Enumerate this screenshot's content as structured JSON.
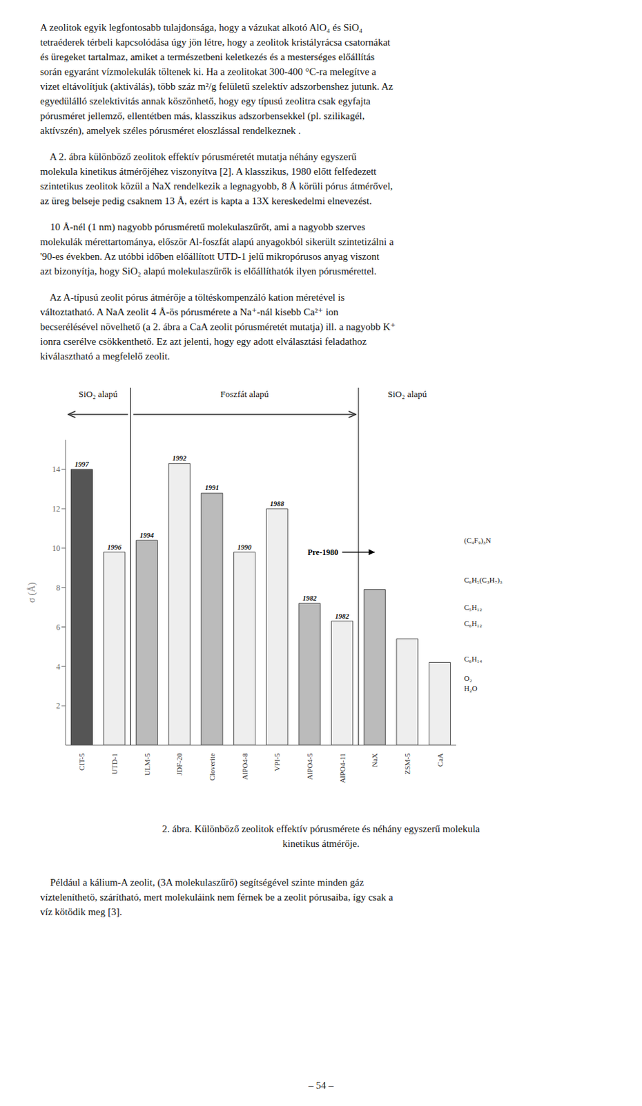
{
  "chart_data": {
    "type": "bar",
    "categories": [
      "CIT-5",
      "UTD-1",
      "ULM-5",
      "JDF-20",
      "Cloverite",
      "AlPO4-8",
      "VPI-5",
      "AlPO4-5",
      "AlPO4-11",
      "NaX",
      "ZSM-5",
      "CaA"
    ],
    "values": [
      14.0,
      9.8,
      10.4,
      14.3,
      12.8,
      9.8,
      12.0,
      7.2,
      6.3,
      7.9,
      5.4,
      4.2
    ],
    "colors": [
      "#555555",
      "#eeeeee",
      "#bbbbbb",
      "#eeeeee",
      "#bbbbbb",
      "#eeeeee",
      "#eeeeee",
      "#bbbbbb",
      "#eeeeee",
      "#bbbbbb",
      "#eeeeee",
      "#eeeeee"
    ],
    "years": [
      "1997",
      "1996",
      "1994",
      "1992",
      "1991",
      "1990",
      "1988",
      "1982",
      "1982",
      null,
      null,
      null
    ],
    "ylabel": "σ (Å)",
    "ylim": [
      0,
      15.5
    ],
    "yticks": [
      2,
      4,
      6,
      8,
      10,
      12,
      14
    ],
    "grid": false,
    "annotations": {
      "groups": [
        {
          "label": "SiO₂ alapú",
          "from": "CIT-5",
          "to": "UTD-1",
          "arrow": "left"
        },
        {
          "label": "Foszfát alapú",
          "from": "ULM-5",
          "to": "AlPO4-11",
          "arrow": "right"
        },
        {
          "label": "SiO₂ alapú",
          "from": "NaX",
          "to": "CaA"
        }
      ],
      "arrow": {
        "text": "Pre-1980",
        "y": 9.8,
        "from": "AlPO4-11",
        "to": "NaX"
      },
      "molecules": [
        {
          "text": "(C₄F₉)₃N",
          "y": 10.4
        },
        {
          "text": "C₆H₅(C₃H₇)₃",
          "y": 8.4
        },
        {
          "text": "C₅H₁₂",
          "y": 7.0
        },
        {
          "text": "C₆H₁₂",
          "y": 6.2
        },
        {
          "text": "C₆H₁₄",
          "y": 4.4
        },
        {
          "text": "O₂",
          "y": 3.4
        },
        {
          "text": "H₂O",
          "y": 2.9
        }
      ]
    }
  },
  "page": {
    "paragraphs": [
      [
        "A zeolitok egyik legfontosabb tulajdonsága, hogy a vázukat alkotó AlO₄ és SiO₄",
        "tetraéderek térbeli kapcsolódása úgy jön létre, hogy a zeolitok kristályrácsa csatornákat",
        "és üregeket tartalmaz, amiket a természetbeni keletkezés és a mesterséges előállítás",
        "során egyaránt vízmolekulák töltenek ki. Ha a zeolitokat 300-400 °C-ra melegítve a",
        "vizet eltávolítjuk (aktiválás), több száz m²/g felületű szelektív adszorbenshez jutunk. Az",
        "egyedülálló szelektivitás annak köszönhető, hogy egy típusú zeolitra csak egyfajta",
        "pórusméret jellemző, ellentétben más, klasszikus adszorbensekkel (pl. szilikagél,",
        "aktívszén), amelyek széles pórusméret eloszlással rendelkeznek ."
      ],
      [
        "    A 2. ábra különböző zeolitok effektív pórusméretét mutatja néhány egyszerű",
        "molekula kinetikus átmérőjéhez viszonyítva [2]. A klasszikus, 1980 előtt felfedezett",
        "szintetikus zeolitok közül a NaX rendelkezik a legnagyobb, 8 Å körüli pórus átmérővel,",
        "az üreg belseje pedig csaknem 13 Å, ezért is kapta a 13X kereskedelmi elnevezést."
      ],
      [
        "    10 Å-nél (1 nm) nagyobb pórusméretű molekulaszűrőt, ami a nagyobb szerves",
        "molekulák mérettartománya, először Al-foszfát alapú anyagokból sikerült szintetizálni a",
        "'90-es években. Az utóbbi időben előállított UTD-1 jelű mikropórusos anyag viszont",
        "azt bizonyítja, hogy SiO₂ alapú molekulaszűrők is előállíthatók ilyen pórusmérettel."
      ],
      [
        "    Az A-típusú zeolit pórus átmérője a töltéskompenzáló kation méretével is",
        "változtatható. A NaA zeolit 4 Å-ös pórusmérete a Na⁺-nál kisebb Ca²⁺ ion",
        "becserélésével növelhető (a 2. ábra a CaA zeolit pórusméretét mutatja) ill. a nagyobb K⁺",
        "ionra cserélve csökkenthető. Ez azt jelenti, hogy egy adott elválasztási feladathoz",
        "kiválasztható a megfelelő zeolit."
      ]
    ],
    "caption": [
      "2. ábra. Különböző zeolitok effektív pórusmérete és néhány egyszerű molekula",
      "kinetikus átmérője."
    ],
    "paragraphs_after": [
      [
        "    Például a kálium-A zeolit, (3A molekulaszűrő) segítségével szinte minden gáz",
        "vízteleníthetö, szárítható, mert molekuláink nem férnek be a zeolit pórusaiba, így csak a",
        "víz kötödik meg [3]."
      ]
    ],
    "footer": "– 54 –"
  }
}
